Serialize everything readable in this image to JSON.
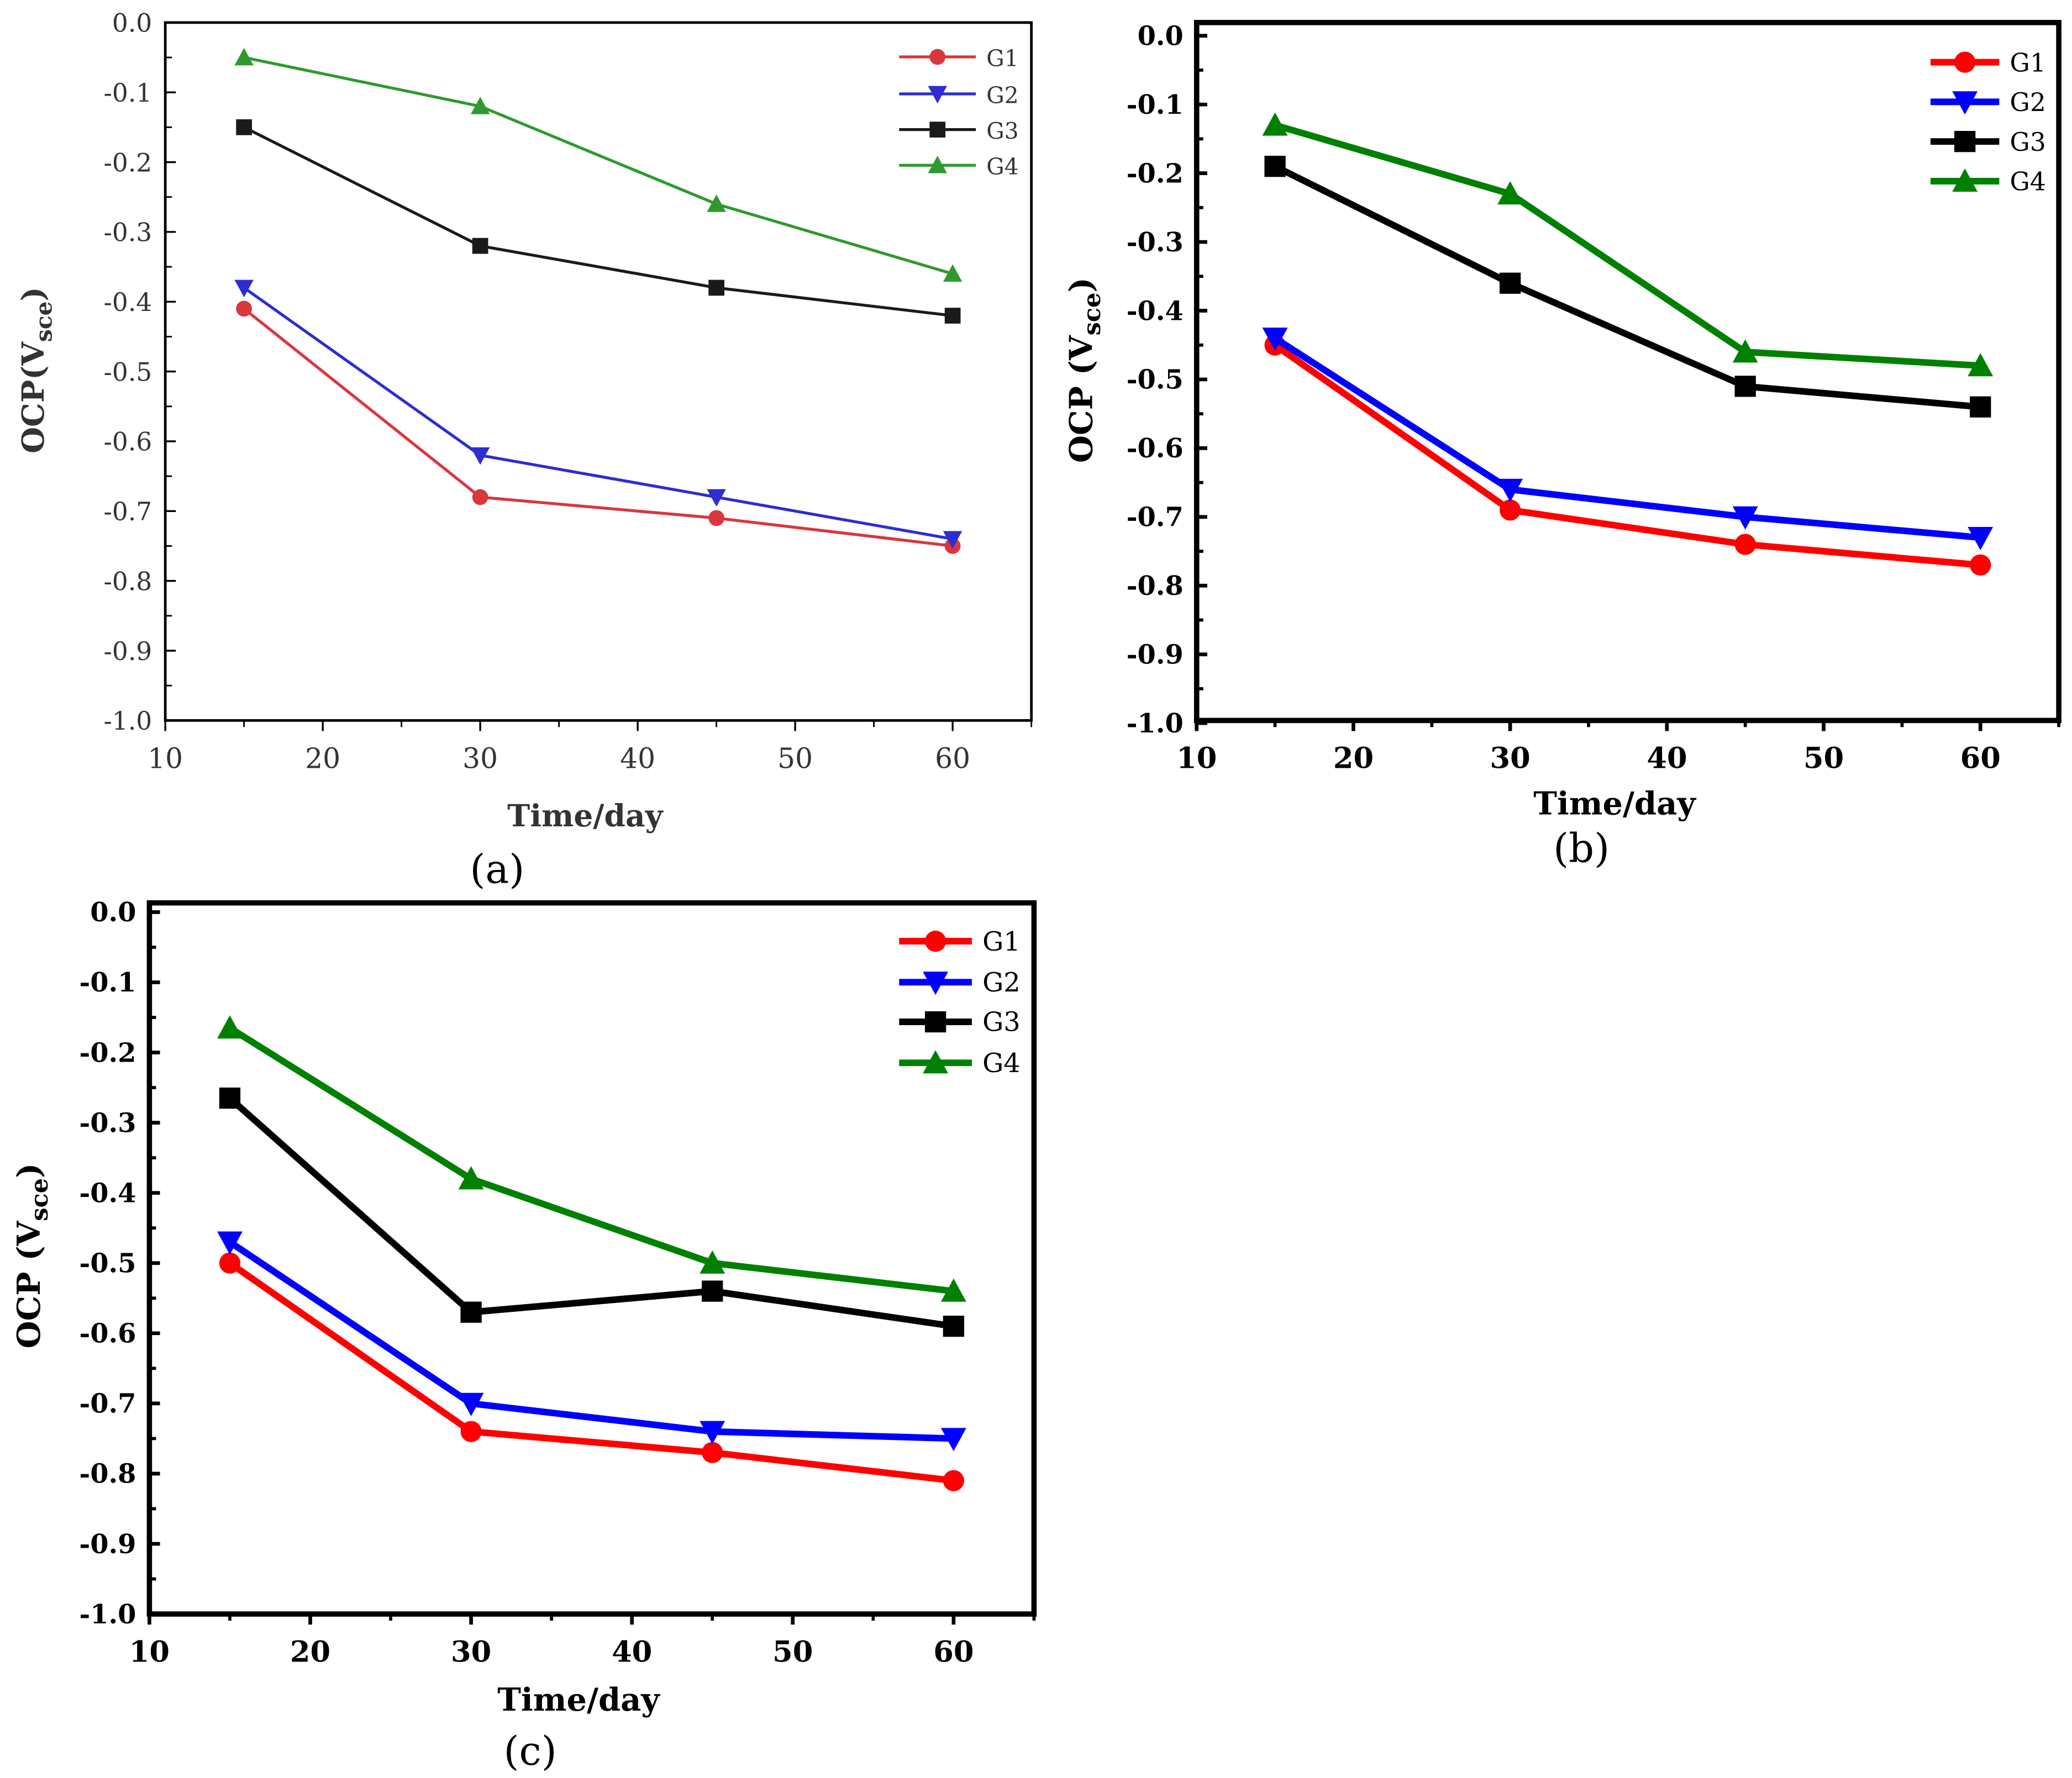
{
  "chart_data": [
    {
      "type": "line",
      "panel_label": "(a)",
      "xlabel": "Time/day",
      "ylabel_main": "OCP(V",
      "ylabel_sub": "sce",
      "ylabel_end": ")",
      "xlim": [
        10,
        65
      ],
      "ylim": [
        -1.0,
        0.0
      ],
      "xticks": [
        10,
        20,
        30,
        40,
        50,
        60
      ],
      "yticks": [
        0.0,
        -0.1,
        -0.2,
        -0.3,
        -0.4,
        -0.5,
        -0.6,
        -0.7,
        -0.8,
        -0.9,
        -1.0
      ],
      "x": [
        15,
        30,
        45,
        60
      ],
      "legend": "top-right",
      "series": [
        {
          "name": "G1",
          "marker": "circle",
          "color": "#d9363e",
          "values": [
            -0.41,
            -0.68,
            -0.71,
            -0.75
          ]
        },
        {
          "name": "G2",
          "marker": "triangle-down",
          "color": "#2d2dd0",
          "values": [
            -0.38,
            -0.62,
            -0.68,
            -0.74
          ]
        },
        {
          "name": "G3",
          "marker": "square",
          "color": "#1a1a1a",
          "values": [
            -0.15,
            -0.32,
            -0.38,
            -0.42
          ]
        },
        {
          "name": "G4",
          "marker": "triangle-up",
          "color": "#2e9a2e",
          "values": [
            -0.05,
            -0.12,
            -0.26,
            -0.36
          ]
        }
      ]
    },
    {
      "type": "line",
      "panel_label": "(b)",
      "xlabel": "Time/day",
      "ylabel_main": "OCP (V",
      "ylabel_sub": "sce",
      "ylabel_end": ")",
      "xlim": [
        10,
        65
      ],
      "ylim": [
        -1.0,
        0.0
      ],
      "xticks": [
        10,
        20,
        30,
        40,
        50,
        60
      ],
      "yticks": [
        0.0,
        -0.1,
        -0.2,
        -0.3,
        -0.4,
        -0.5,
        -0.6,
        -0.7,
        -0.8,
        -0.9,
        -1.0
      ],
      "x": [
        15,
        30,
        45,
        60
      ],
      "legend": "top-right",
      "series": [
        {
          "name": "G1",
          "marker": "circle",
          "color": "#ff0000",
          "values": [
            -0.45,
            -0.69,
            -0.74,
            -0.77
          ]
        },
        {
          "name": "G2",
          "marker": "triangle-down",
          "color": "#0000ff",
          "values": [
            -0.44,
            -0.66,
            -0.7,
            -0.73
          ]
        },
        {
          "name": "G3",
          "marker": "square",
          "color": "#000000",
          "values": [
            -0.19,
            -0.36,
            -0.51,
            -0.54
          ]
        },
        {
          "name": "G4",
          "marker": "triangle-up",
          "color": "#008000",
          "values": [
            -0.13,
            -0.23,
            -0.46,
            -0.48
          ]
        }
      ]
    },
    {
      "type": "line",
      "panel_label": "(c)",
      "xlabel": "Time/day",
      "ylabel_main": "OCP (V",
      "ylabel_sub": "sce",
      "ylabel_end": ")",
      "xlim": [
        10,
        65
      ],
      "ylim": [
        -1.0,
        0.0
      ],
      "xticks": [
        10,
        20,
        30,
        40,
        50,
        60
      ],
      "yticks": [
        0.0,
        -0.1,
        -0.2,
        -0.3,
        -0.4,
        -0.5,
        -0.6,
        -0.7,
        -0.8,
        -0.9,
        -1.0
      ],
      "x": [
        15,
        30,
        45,
        60
      ],
      "legend": "top-right",
      "series": [
        {
          "name": "G1",
          "marker": "circle",
          "color": "#ff0000",
          "values": [
            -0.5,
            -0.74,
            -0.77,
            -0.81
          ]
        },
        {
          "name": "G2",
          "marker": "triangle-down",
          "color": "#0000ff",
          "values": [
            -0.47,
            -0.7,
            -0.74,
            -0.75
          ]
        },
        {
          "name": "G3",
          "marker": "square",
          "color": "#000000",
          "values": [
            -0.265,
            -0.57,
            -0.54,
            -0.59
          ]
        },
        {
          "name": "G4",
          "marker": "triangle-up",
          "color": "#008000",
          "values": [
            -0.165,
            -0.38,
            -0.5,
            -0.54
          ]
        }
      ]
    }
  ]
}
